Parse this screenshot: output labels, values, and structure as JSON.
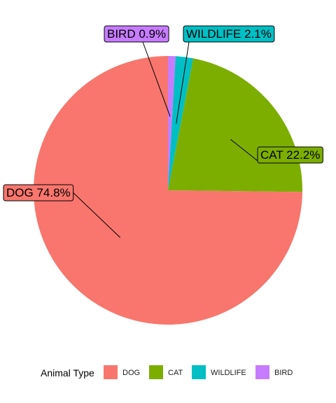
{
  "chart_data": {
    "type": "pie",
    "title": "",
    "legend_title": "Animal Type",
    "legend_position": "bottom",
    "series": [
      {
        "name": "DOG",
        "value": 74.8,
        "label": "DOG 74.8%",
        "color": "#F8766D"
      },
      {
        "name": "CAT",
        "value": 22.2,
        "label": "CAT 22.2%",
        "color": "#7CAE00"
      },
      {
        "name": "WILDLIFE",
        "value": 2.1,
        "label": "WILDLIFE 2.1%",
        "color": "#00BFC4"
      },
      {
        "name": "BIRD",
        "value": 0.9,
        "label": "BIRD 0.9%",
        "color": "#C77CFF"
      }
    ]
  }
}
